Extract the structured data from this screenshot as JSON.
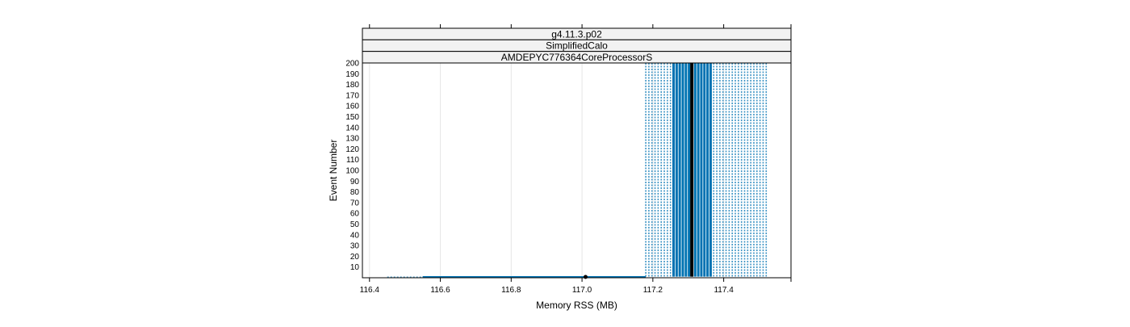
{
  "chart_data": {
    "type": "line",
    "strips": [
      "g4.11.3.p02",
      "SimplifiedCalo",
      "AMDEPYC776364CoreProcessorS"
    ],
    "xlabel": "Memory RSS (MB)",
    "ylabel": "Event Number",
    "xlim": [
      116.38,
      117.59
    ],
    "ylim": [
      0,
      200
    ],
    "x_ticks": [
      116.4,
      116.6,
      116.8,
      117.0,
      117.2,
      117.4
    ],
    "x_tick_labels": [
      "116.4",
      "116.6",
      "116.8",
      "117.0",
      "117.2",
      "117.4"
    ],
    "y_ticks": [
      10,
      20,
      30,
      40,
      50,
      60,
      70,
      80,
      90,
      100,
      110,
      120,
      130,
      140,
      150,
      160,
      170,
      180,
      190,
      200
    ],
    "y_tick_labels": [
      "10",
      "20",
      "30",
      "40",
      "50",
      "60",
      "70",
      "80",
      "90",
      "100",
      "110",
      "120",
      "130",
      "140",
      "150",
      "160",
      "170",
      "180",
      "190",
      "200"
    ],
    "grid": true,
    "line_color": "#0072b2",
    "median_color": "#000000",
    "band": {
      "outer_range": [
        117.18,
        117.52
      ],
      "inner_range": [
        117.25,
        117.37
      ],
      "median": 117.31,
      "events": [
        1,
        200
      ],
      "line_count": 40
    },
    "ramp": {
      "dashed_start": [
        116.45,
        0
      ],
      "solid_start": [
        116.55,
        0
      ],
      "end": [
        117.18,
        0
      ]
    },
    "marker_point": [
      117.01,
      0
    ]
  }
}
